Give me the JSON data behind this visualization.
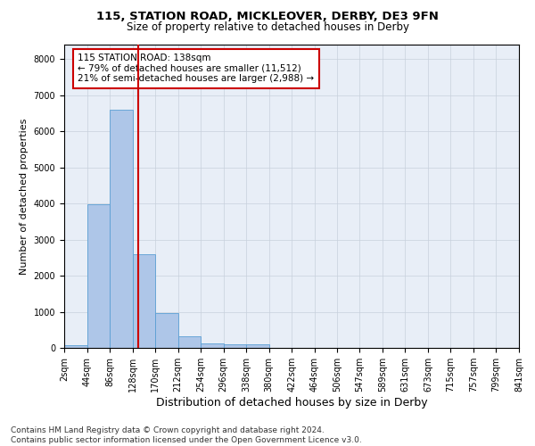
{
  "title_line1": "115, STATION ROAD, MICKLEOVER, DERBY, DE3 9FN",
  "title_line2": "Size of property relative to detached houses in Derby",
  "xlabel": "Distribution of detached houses by size in Derby",
  "ylabel": "Number of detached properties",
  "bar_edges": [
    2,
    44,
    86,
    128,
    170,
    212,
    254,
    296,
    338,
    380,
    422,
    464,
    506,
    547,
    589,
    631,
    673,
    715,
    757,
    799,
    841
  ],
  "bar_heights": [
    80,
    3980,
    6600,
    2600,
    960,
    310,
    130,
    110,
    90,
    0,
    0,
    0,
    0,
    0,
    0,
    0,
    0,
    0,
    0,
    0
  ],
  "bar_color": "#aec6e8",
  "bar_edge_color": "#5a9fd4",
  "vline_x": 138,
  "vline_color": "#cc0000",
  "annotation_text": "115 STATION ROAD: 138sqm\n← 79% of detached houses are smaller (11,512)\n21% of semi-detached houses are larger (2,988) →",
  "annotation_box_color": "#cc0000",
  "ylim": [
    0,
    8400
  ],
  "yticks": [
    0,
    1000,
    2000,
    3000,
    4000,
    5000,
    6000,
    7000,
    8000
  ],
  "xtick_labels": [
    "2sqm",
    "44sqm",
    "86sqm",
    "128sqm",
    "170sqm",
    "212sqm",
    "254sqm",
    "296sqm",
    "338sqm",
    "380sqm",
    "422sqm",
    "464sqm",
    "506sqm",
    "547sqm",
    "589sqm",
    "631sqm",
    "673sqm",
    "715sqm",
    "757sqm",
    "799sqm",
    "841sqm"
  ],
  "grid_color": "#c8d0dc",
  "bg_color": "#e8eef7",
  "footnote": "Contains HM Land Registry data © Crown copyright and database right 2024.\nContains public sector information licensed under the Open Government Licence v3.0.",
  "title_fontsize": 9.5,
  "subtitle_fontsize": 8.5,
  "axis_label_fontsize": 8,
  "tick_fontsize": 7,
  "annotation_fontsize": 7.5,
  "footnote_fontsize": 6.5
}
